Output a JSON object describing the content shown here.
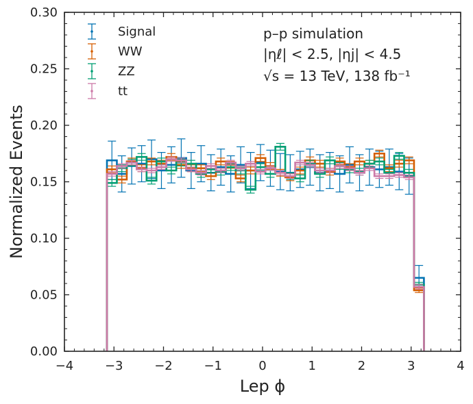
{
  "chart_data": {
    "type": "histogram",
    "xlabel": "Lep ϕ",
    "ylabel": "Normalized Events",
    "xlim": [
      -4,
      4
    ],
    "ylim": [
      0,
      0.3
    ],
    "xticks": [
      "−4",
      "−3",
      "−2",
      "−1",
      "0",
      "1",
      "2",
      "3",
      "4"
    ],
    "yticks": [
      "0.00",
      "0.05",
      "0.10",
      "0.15",
      "0.20",
      "0.25",
      "0.30"
    ],
    "annotations": [
      "p–p simulation",
      "|ηℓ| < 2.5, |ηj| < 4.5",
      "√s = 13 TeV, 138 fb⁻¹"
    ],
    "bin_edges": [
      -3.1416,
      -2.9416,
      -2.7416,
      -2.5416,
      -2.3416,
      -2.1416,
      -1.9416,
      -1.7416,
      -1.5416,
      -1.3416,
      -1.1416,
      -0.9416,
      -0.7416,
      -0.5416,
      -0.3416,
      -0.1416,
      0.0584,
      0.2584,
      0.4584,
      0.6584,
      0.8584,
      1.0584,
      1.2584,
      1.4584,
      1.6584,
      1.8584,
      2.0584,
      2.2584,
      2.4584,
      2.6584,
      2.8584,
      3.0584,
      3.2584
    ],
    "series": [
      {
        "name": "Signal",
        "color": "#0072b2",
        "values": [
          0.169,
          0.157,
          0.164,
          0.166,
          0.17,
          0.16,
          0.165,
          0.171,
          0.16,
          0.166,
          0.158,
          0.163,
          0.157,
          0.165,
          0.16,
          0.167,
          0.162,
          0.159,
          0.158,
          0.161,
          0.163,
          0.158,
          0.16,
          0.157,
          0.165,
          0.158,
          0.163,
          0.161,
          0.163,
          0.159,
          0.155,
          0.065
        ],
        "errors": [
          0.017,
          0.016,
          0.016,
          0.016,
          0.017,
          0.016,
          0.016,
          0.017,
          0.016,
          0.016,
          0.016,
          0.016,
          0.016,
          0.016,
          0.016,
          0.016,
          0.016,
          0.016,
          0.016,
          0.016,
          0.016,
          0.016,
          0.016,
          0.016,
          0.016,
          0.016,
          0.016,
          0.016,
          0.016,
          0.016,
          0.016,
          0.011
        ]
      },
      {
        "name": "WW",
        "color": "#d55e00",
        "values": [
          0.161,
          0.152,
          0.168,
          0.162,
          0.168,
          0.166,
          0.172,
          0.165,
          0.162,
          0.162,
          0.155,
          0.168,
          0.165,
          0.153,
          0.16,
          0.171,
          0.164,
          0.158,
          0.154,
          0.16,
          0.169,
          0.166,
          0.159,
          0.168,
          0.163,
          0.168,
          0.166,
          0.175,
          0.162,
          0.166,
          0.169,
          0.054
        ],
        "errors": [
          0.003,
          0.003,
          0.003,
          0.003,
          0.003,
          0.003,
          0.003,
          0.003,
          0.003,
          0.003,
          0.003,
          0.003,
          0.003,
          0.003,
          0.003,
          0.003,
          0.003,
          0.003,
          0.003,
          0.003,
          0.003,
          0.003,
          0.003,
          0.003,
          0.003,
          0.003,
          0.003,
          0.003,
          0.003,
          0.003,
          0.003,
          0.002
        ]
      },
      {
        "name": "ZZ",
        "color": "#009e73",
        "values": [
          0.149,
          0.162,
          0.167,
          0.172,
          0.151,
          0.168,
          0.16,
          0.167,
          0.166,
          0.157,
          0.161,
          0.159,
          0.163,
          0.16,
          0.143,
          0.163,
          0.157,
          0.181,
          0.155,
          0.153,
          0.166,
          0.157,
          0.169,
          0.164,
          0.161,
          0.159,
          0.166,
          0.168,
          0.158,
          0.173,
          0.158,
          0.059
        ],
        "errors": [
          0.003,
          0.003,
          0.003,
          0.003,
          0.003,
          0.003,
          0.003,
          0.003,
          0.003,
          0.003,
          0.003,
          0.003,
          0.003,
          0.003,
          0.003,
          0.003,
          0.003,
          0.003,
          0.003,
          0.003,
          0.003,
          0.003,
          0.003,
          0.003,
          0.003,
          0.003,
          0.003,
          0.003,
          0.003,
          0.003,
          0.003,
          0.002
        ]
      },
      {
        "name": "tt",
        "color": "#cc79a7",
        "values": [
          0.157,
          0.164,
          0.167,
          0.161,
          0.16,
          0.163,
          0.17,
          0.169,
          0.161,
          0.158,
          0.164,
          0.16,
          0.167,
          0.162,
          0.166,
          0.159,
          0.162,
          0.158,
          0.155,
          0.167,
          0.165,
          0.16,
          0.16,
          0.164,
          0.162,
          0.158,
          0.162,
          0.155,
          0.155,
          0.156,
          0.154,
          0.057
        ],
        "errors": [
          0.002,
          0.002,
          0.002,
          0.002,
          0.002,
          0.002,
          0.002,
          0.002,
          0.002,
          0.002,
          0.002,
          0.002,
          0.002,
          0.002,
          0.002,
          0.002,
          0.002,
          0.002,
          0.002,
          0.002,
          0.002,
          0.002,
          0.002,
          0.002,
          0.002,
          0.002,
          0.002,
          0.002,
          0.002,
          0.002,
          0.002,
          0.002
        ]
      }
    ]
  }
}
